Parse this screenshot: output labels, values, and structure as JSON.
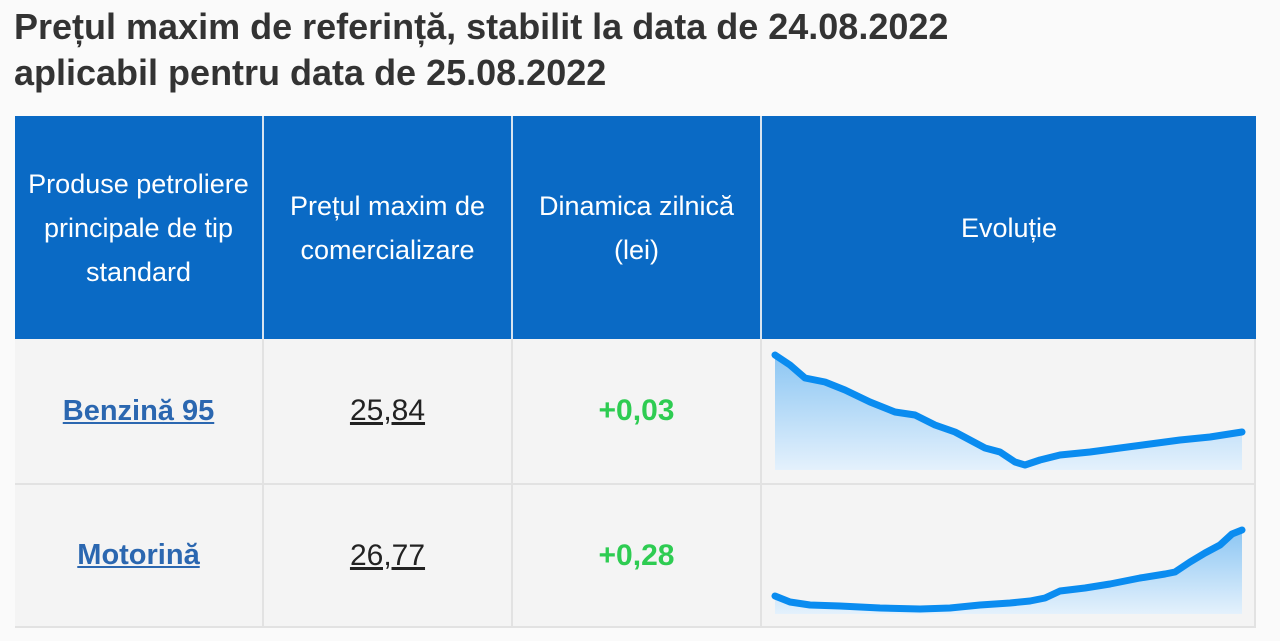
{
  "header": {
    "title_lines": [
      "Prețul maxim de referință, stabilit la data de 24.08.2022",
      "aplicabil pentru data de 25.08.2022"
    ]
  },
  "table": {
    "columns": [
      "Produse petroliere principale de tip standard",
      "Prețul maxim de comercializare",
      "Dinamica zilnică (lei)",
      "Evoluție"
    ],
    "rows": [
      [
        "Benzină 95",
        "25,84",
        "+0,03"
      ],
      [
        "Motorină",
        "26,77",
        "+0,28"
      ]
    ]
  }
}
